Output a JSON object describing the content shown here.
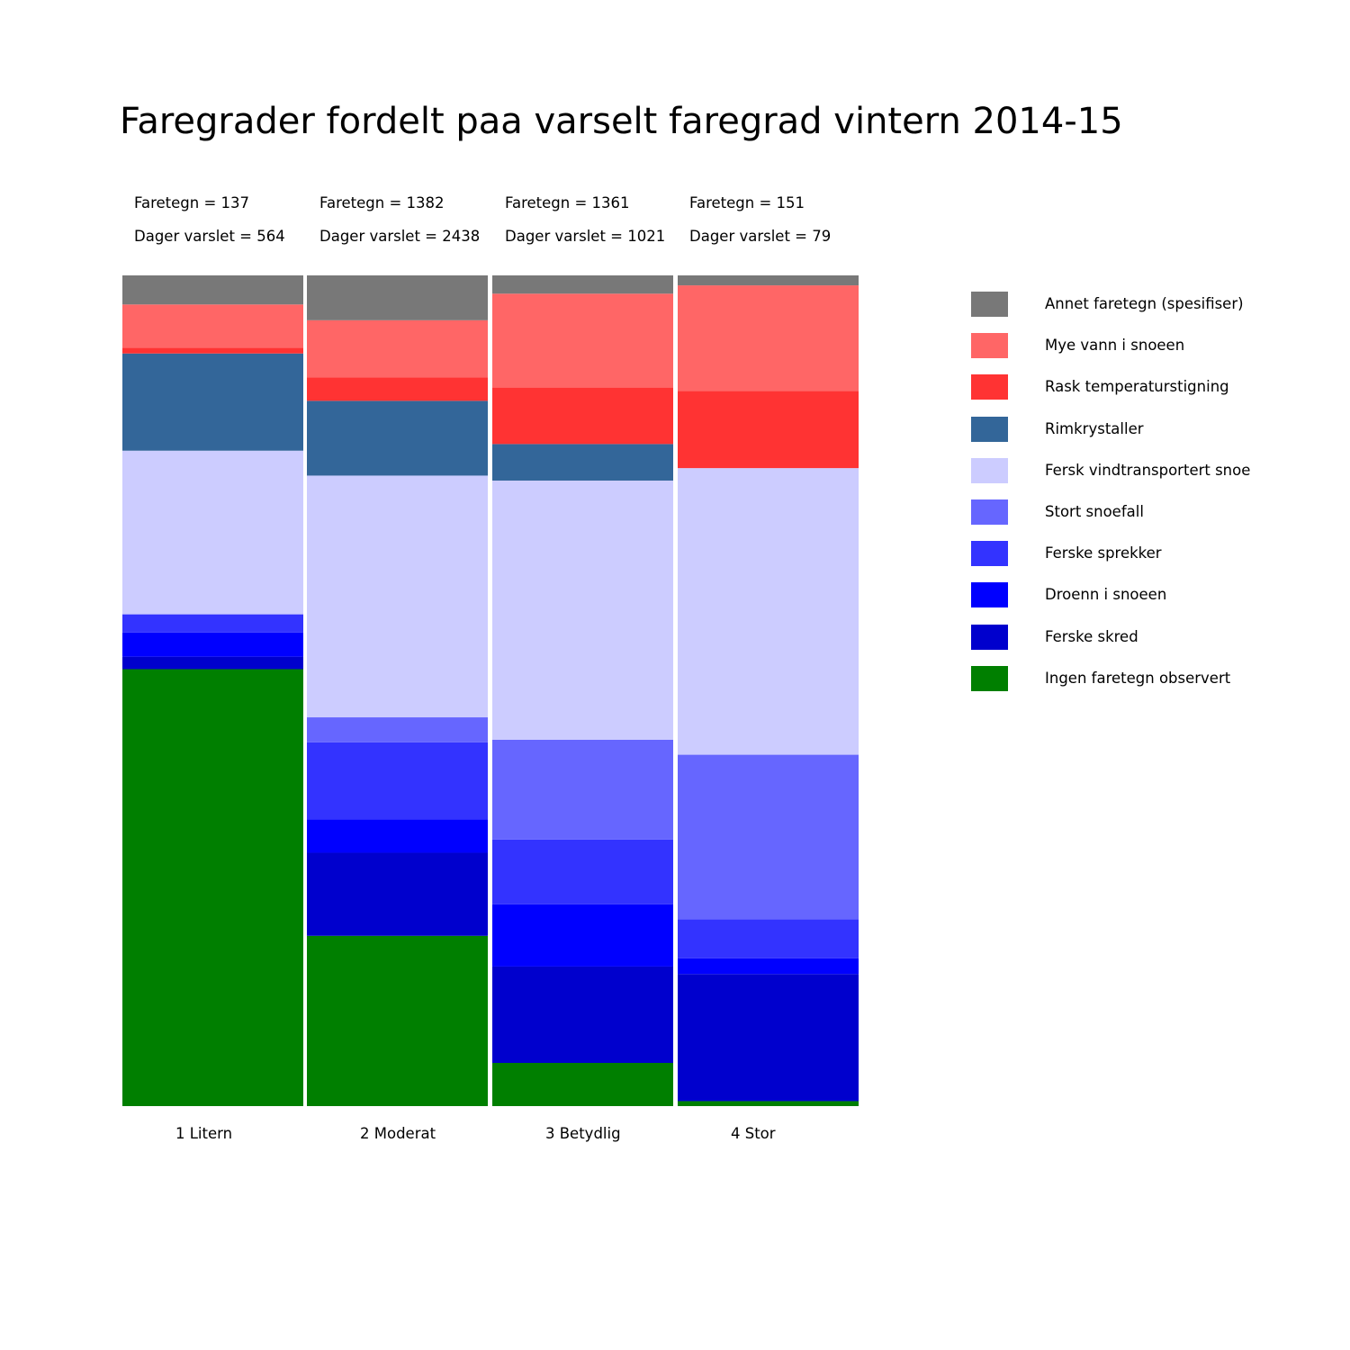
{
  "chart_data": {
    "type": "bar",
    "stacked": true,
    "normalized": true,
    "title": "Faregrader fordelt paa varselt faregrad vintern 2014-15",
    "xlabel": "",
    "ylabel": "",
    "ylim": [
      0,
      1
    ],
    "grid": false,
    "legend_position": "right",
    "categories": [
      "1 Litern",
      "2 Moderat",
      "3 Betydlig",
      "4 Stor"
    ],
    "annotations": [
      {
        "faretegn": "Faretegn = 137",
        "dager": "Dager varslet = 564"
      },
      {
        "faretegn": "Faretegn = 1382",
        "dager": "Dager varslet = 2438"
      },
      {
        "faretegn": "Faretegn = 1361",
        "dager": "Dager varslet = 1021"
      },
      {
        "faretegn": "Faretegn = 151",
        "dager": "Dager varslet = 79"
      }
    ],
    "series": [
      {
        "name": "Ingen faretegn observert",
        "color": "#007f00",
        "values": [
          0.526,
          0.205,
          0.052,
          0.006
        ]
      },
      {
        "name": "Ferske skred",
        "color": "#0000cd",
        "values": [
          0.015,
          0.1,
          0.116,
          0.153
        ]
      },
      {
        "name": "Droenn i snoeen",
        "color": "#0000ff",
        "values": [
          0.029,
          0.04,
          0.075,
          0.019
        ]
      },
      {
        "name": "Ferske sprekker",
        "color": "#3333ff",
        "values": [
          0.022,
          0.093,
          0.078,
          0.047
        ]
      },
      {
        "name": "Stort snoefall",
        "color": "#6666ff",
        "values": [
          0.0,
          0.03,
          0.12,
          0.198
        ]
      },
      {
        "name": "Fersk vindtransportert snoe",
        "color": "#ccccff",
        "values": [
          0.197,
          0.291,
          0.312,
          0.345
        ]
      },
      {
        "name": "Rimkrystaller",
        "color": "#336699",
        "values": [
          0.117,
          0.09,
          0.044,
          0.0
        ]
      },
      {
        "name": "Rask temperaturstigning",
        "color": "#ff3333",
        "values": [
          0.007,
          0.028,
          0.068,
          0.093
        ]
      },
      {
        "name": "Mye vann i snoeen",
        "color": "#ff6666",
        "values": [
          0.052,
          0.069,
          0.113,
          0.127
        ]
      },
      {
        "name": "Annet faretegn (spesifiser)",
        "color": "#787878",
        "values": [
          0.035,
          0.054,
          0.022,
          0.012
        ]
      }
    ]
  }
}
